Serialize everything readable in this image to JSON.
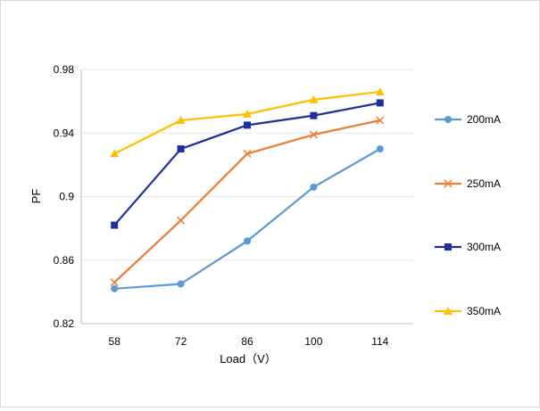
{
  "chart_data": {
    "type": "line",
    "title": "",
    "xlabel": "Load（V）",
    "ylabel": "PF",
    "categories": [
      "58",
      "72",
      "86",
      "100",
      "114"
    ],
    "ylim": [
      0.82,
      0.98
    ],
    "yticks": [
      "0.82",
      "0.86",
      "0.9",
      "0.94",
      "0.98"
    ],
    "grid": true,
    "legend": "right",
    "series": [
      {
        "name": "200mA",
        "color": "#5b9bd5",
        "marker": "circle",
        "values": [
          0.842,
          0.845,
          0.872,
          0.906,
          0.93
        ]
      },
      {
        "name": "250mA",
        "color": "#ed7d31",
        "marker": "x",
        "values": [
          0.846,
          0.885,
          0.927,
          0.939,
          0.948
        ]
      },
      {
        "name": "300mA",
        "color": "#1f2f9c",
        "marker": "square",
        "values": [
          0.882,
          0.93,
          0.945,
          0.951,
          0.959
        ]
      },
      {
        "name": "350mA",
        "color": "#ffc000",
        "marker": "triangle",
        "values": [
          0.927,
          0.948,
          0.952,
          0.961,
          0.966
        ]
      }
    ]
  }
}
